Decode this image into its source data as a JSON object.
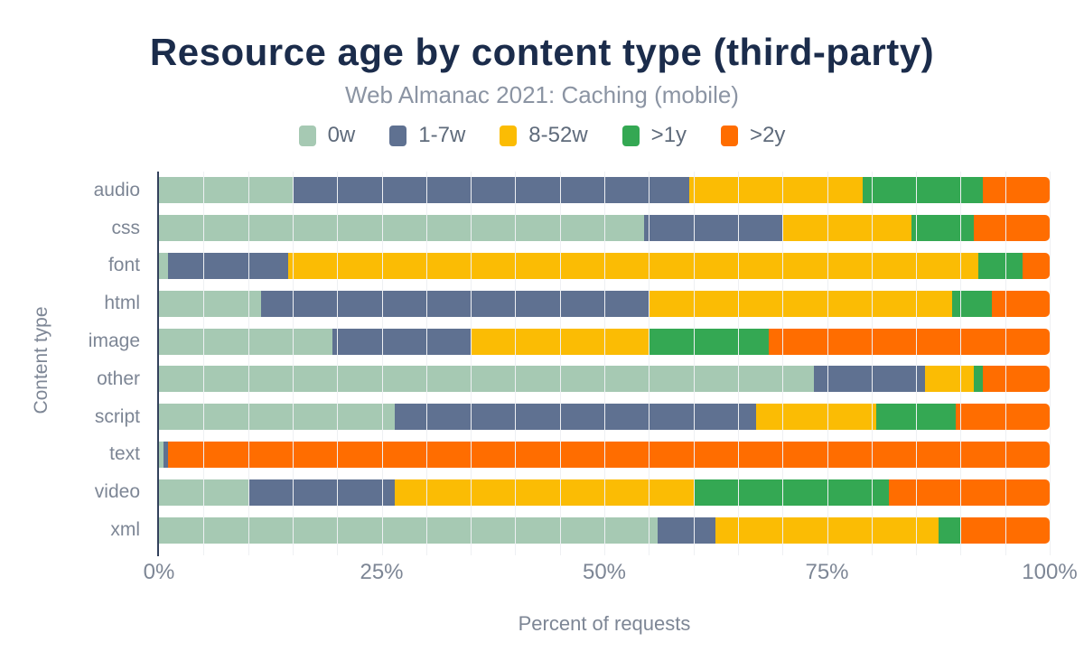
{
  "title": "Resource age by content type (third-party)",
  "subtitle": "Web Almanac 2021: Caching (mobile)",
  "colors": {
    "title": "#1b2c4b",
    "subtitle_text": "#8b94a3",
    "axis_text": "#7d8695",
    "legend_text": "#5f6b7b",
    "axis_line": "#33415c",
    "gridline": "#eef0f3",
    "background": "#ffffff"
  },
  "chart_data": {
    "type": "bar",
    "orientation": "horizontal",
    "stacked": true,
    "units": "percent",
    "title": "Resource age by content type (third-party)",
    "subtitle": "Web Almanac 2021: Caching (mobile)",
    "xlabel": "Percent of requests",
    "ylabel": "Content type",
    "xlim": [
      0,
      100
    ],
    "x_ticks": [
      "0%",
      "25%",
      "50%",
      "75%",
      "100%"
    ],
    "grid": "faint vertical gridlines every 5%",
    "legend_position": "top",
    "categories": [
      "audio",
      "css",
      "font",
      "html",
      "image",
      "other",
      "script",
      "text",
      "video",
      "xml"
    ],
    "series": [
      {
        "name": "0w",
        "color": "#a6c9b3",
        "values": [
          15,
          54.5,
          1,
          11.5,
          19.5,
          73.5,
          26.5,
          0.5,
          10,
          56
        ]
      },
      {
        "name": "1-7w",
        "color": "#5f7191",
        "values": [
          44.5,
          15.5,
          13.5,
          43.5,
          15.5,
          12.5,
          40.5,
          0.5,
          16.5,
          6.5
        ]
      },
      {
        "name": "8-52w",
        "color": "#fbbc04",
        "values": [
          19.5,
          14.5,
          77.5,
          34,
          20,
          5.5,
          13.5,
          0,
          33.5,
          25
        ]
      },
      {
        "name": ">1y",
        "color": "#34a853",
        "values": [
          13.5,
          7,
          5,
          4.5,
          13.5,
          1,
          9,
          0,
          22,
          2.5
        ]
      },
      {
        "name": ">2y",
        "color": "#ff6d00",
        "values": [
          7.5,
          8.5,
          3,
          6.5,
          31.5,
          7.5,
          10.5,
          99,
          18,
          10
        ]
      }
    ]
  }
}
